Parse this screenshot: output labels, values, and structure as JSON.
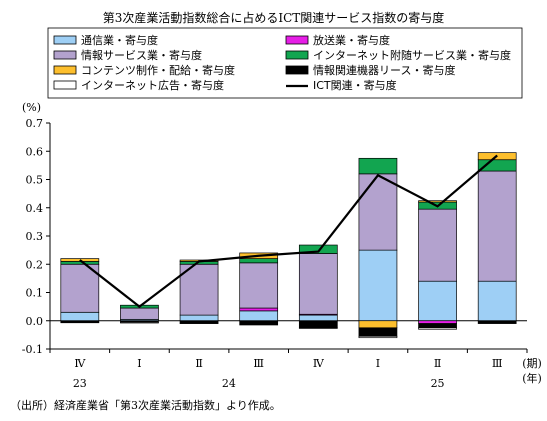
{
  "title": "第3次産業活動指数総合に占めるICT関連サービス指数の寄与度",
  "source_note": "（出所）経済産業省「第3次産業活動指数」より作成。",
  "chart_data": {
    "type": "bar",
    "subtype": "stacked-bar-with-line",
    "yunit": "(%)",
    "ylim": [
      -0.1,
      0.7
    ],
    "yticks": [
      -0.1,
      0.0,
      0.1,
      0.2,
      0.3,
      0.4,
      0.5,
      0.6,
      0.7
    ],
    "ytick_labels": [
      "-0.1",
      "0.0",
      "0.1",
      "0.2",
      "0.3",
      "0.4",
      "0.5",
      "0.6",
      "0.7"
    ],
    "categories": [
      "Ⅳ",
      "Ⅰ",
      "Ⅱ",
      "Ⅲ",
      "Ⅳ",
      "Ⅰ",
      "Ⅱ",
      "Ⅲ"
    ],
    "years": [
      {
        "label": "23",
        "category_index": 0
      },
      {
        "label": "24",
        "category_index": 2.5
      },
      {
        "label": "25",
        "category_index": 6
      }
    ],
    "x_unit_period": "(期)",
    "x_unit_year": "(年)",
    "grid": false,
    "legend_position": "top",
    "series": [
      {
        "name": "通信業・寄与度",
        "color": "#9ecff5",
        "values": [
          0.03,
          0.005,
          0.02,
          0.035,
          0.02,
          0.25,
          0.14,
          0.14
        ]
      },
      {
        "name": "放送業・寄与度",
        "color": "#e61ee6",
        "values": [
          0.0,
          0.0,
          0.0,
          0.01,
          0.003,
          0.0,
          -0.01,
          0.0
        ]
      },
      {
        "name": "情報サービス業・寄与度",
        "color": "#b3a2ce",
        "values": [
          0.17,
          0.04,
          0.18,
          0.16,
          0.215,
          0.27,
          0.255,
          0.39
        ]
      },
      {
        "name": "インターネット附随サービス業・寄与度",
        "color": "#12a550",
        "values": [
          0.01,
          0.01,
          0.01,
          0.015,
          0.03,
          0.055,
          0.025,
          0.04
        ]
      },
      {
        "name": "コンテンツ制作・配給・寄与度",
        "color": "#fdbf2d",
        "values": [
          0.01,
          0.0,
          0.005,
          0.02,
          0.0,
          -0.025,
          0.005,
          0.025
        ]
      },
      {
        "name": "情報関連機器リース・寄与度",
        "color": "#000000",
        "values": [
          -0.005,
          -0.005,
          -0.008,
          -0.015,
          -0.025,
          -0.03,
          -0.015,
          -0.01
        ]
      },
      {
        "name": "インターネット広告・寄与度",
        "color": "#ffffff",
        "values": [
          -0.002,
          -0.003,
          -0.002,
          0.0,
          -0.002,
          -0.005,
          -0.005,
          0.0
        ]
      }
    ],
    "line": {
      "name": "ICT関連・寄与度",
      "color": "#000000",
      "values": [
        0.215,
        0.05,
        0.21,
        0.23,
        0.245,
        0.515,
        0.405,
        0.585
      ]
    }
  }
}
